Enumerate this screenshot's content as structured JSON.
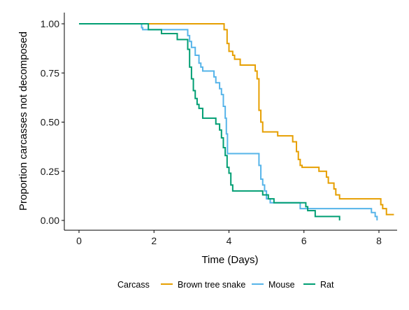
{
  "chart_data": {
    "type": "line",
    "step": true,
    "title": "",
    "xlabel": "Time (Days)",
    "ylabel": "Proportion carcasses not decomposed",
    "xlim": [
      0,
      8.4
    ],
    "ylim": [
      0,
      1
    ],
    "xticks": [
      0,
      2,
      4,
      6,
      8
    ],
    "xtick_labels": [
      "0",
      "2",
      "4",
      "6",
      "8"
    ],
    "yticks": [
      0,
      0.25,
      0.5,
      0.75,
      1
    ],
    "ytick_labels": [
      "0.00",
      "0.25",
      "0.50",
      "0.75",
      "1.00"
    ],
    "grid": false,
    "legend": {
      "title": "Carcass",
      "position": "bottom"
    },
    "series": [
      {
        "name": "Brown tree snake",
        "color": "#E69F00",
        "points": [
          [
            0,
            1.0
          ],
          [
            3.87,
            1.0
          ],
          [
            3.87,
            0.97
          ],
          [
            3.95,
            0.97
          ],
          [
            3.95,
            0.9
          ],
          [
            4.0,
            0.9
          ],
          [
            4.0,
            0.86
          ],
          [
            4.1,
            0.86
          ],
          [
            4.1,
            0.84
          ],
          [
            4.15,
            0.84
          ],
          [
            4.15,
            0.82
          ],
          [
            4.3,
            0.82
          ],
          [
            4.3,
            0.79
          ],
          [
            4.7,
            0.79
          ],
          [
            4.7,
            0.76
          ],
          [
            4.75,
            0.76
          ],
          [
            4.75,
            0.72
          ],
          [
            4.8,
            0.72
          ],
          [
            4.8,
            0.56
          ],
          [
            4.85,
            0.56
          ],
          [
            4.85,
            0.5
          ],
          [
            4.9,
            0.5
          ],
          [
            4.9,
            0.45
          ],
          [
            5.3,
            0.45
          ],
          [
            5.3,
            0.43
          ],
          [
            5.7,
            0.43
          ],
          [
            5.7,
            0.4
          ],
          [
            5.8,
            0.4
          ],
          [
            5.8,
            0.35
          ],
          [
            5.85,
            0.35
          ],
          [
            5.85,
            0.31
          ],
          [
            5.9,
            0.31
          ],
          [
            5.9,
            0.28
          ],
          [
            5.95,
            0.28
          ],
          [
            5.95,
            0.27
          ],
          [
            6.4,
            0.27
          ],
          [
            6.4,
            0.25
          ],
          [
            6.6,
            0.25
          ],
          [
            6.6,
            0.22
          ],
          [
            6.65,
            0.22
          ],
          [
            6.65,
            0.19
          ],
          [
            6.8,
            0.19
          ],
          [
            6.8,
            0.16
          ],
          [
            6.85,
            0.16
          ],
          [
            6.85,
            0.13
          ],
          [
            6.95,
            0.13
          ],
          [
            6.95,
            0.11
          ],
          [
            8.05,
            0.11
          ],
          [
            8.05,
            0.08
          ],
          [
            8.1,
            0.08
          ],
          [
            8.1,
            0.06
          ],
          [
            8.2,
            0.06
          ],
          [
            8.2,
            0.03
          ],
          [
            8.4,
            0.03
          ]
        ]
      },
      {
        "name": "Mouse",
        "color": "#56B4E9",
        "points": [
          [
            0,
            1.0
          ],
          [
            1.67,
            1.0
          ],
          [
            1.67,
            0.98
          ],
          [
            1.7,
            0.98
          ],
          [
            1.7,
            0.97
          ],
          [
            2.9,
            0.97
          ],
          [
            2.9,
            0.94
          ],
          [
            2.95,
            0.94
          ],
          [
            2.95,
            0.91
          ],
          [
            3.0,
            0.91
          ],
          [
            3.0,
            0.88
          ],
          [
            3.1,
            0.88
          ],
          [
            3.1,
            0.84
          ],
          [
            3.2,
            0.84
          ],
          [
            3.2,
            0.8
          ],
          [
            3.25,
            0.8
          ],
          [
            3.25,
            0.78
          ],
          [
            3.3,
            0.78
          ],
          [
            3.3,
            0.76
          ],
          [
            3.6,
            0.76
          ],
          [
            3.6,
            0.73
          ],
          [
            3.65,
            0.73
          ],
          [
            3.65,
            0.7
          ],
          [
            3.75,
            0.7
          ],
          [
            3.75,
            0.67
          ],
          [
            3.8,
            0.67
          ],
          [
            3.8,
            0.64
          ],
          [
            3.85,
            0.64
          ],
          [
            3.85,
            0.58
          ],
          [
            3.9,
            0.58
          ],
          [
            3.9,
            0.52
          ],
          [
            3.93,
            0.52
          ],
          [
            3.93,
            0.44
          ],
          [
            3.96,
            0.44
          ],
          [
            3.96,
            0.34
          ],
          [
            4.8,
            0.34
          ],
          [
            4.8,
            0.28
          ],
          [
            4.85,
            0.28
          ],
          [
            4.85,
            0.21
          ],
          [
            4.9,
            0.21
          ],
          [
            4.9,
            0.18
          ],
          [
            4.95,
            0.18
          ],
          [
            4.95,
            0.15
          ],
          [
            5.0,
            0.15
          ],
          [
            5.0,
            0.11
          ],
          [
            5.1,
            0.11
          ],
          [
            5.1,
            0.09
          ],
          [
            5.9,
            0.09
          ],
          [
            5.9,
            0.06
          ],
          [
            7.8,
            0.06
          ],
          [
            7.8,
            0.04
          ],
          [
            7.9,
            0.04
          ],
          [
            7.9,
            0.02
          ],
          [
            7.95,
            0.02
          ],
          [
            7.95,
            0.0
          ]
        ]
      },
      {
        "name": "Rat",
        "color": "#009E73",
        "points": [
          [
            0,
            1.0
          ],
          [
            1.85,
            1.0
          ],
          [
            1.85,
            0.97
          ],
          [
            2.2,
            0.97
          ],
          [
            2.2,
            0.95
          ],
          [
            2.62,
            0.95
          ],
          [
            2.62,
            0.92
          ],
          [
            2.9,
            0.92
          ],
          [
            2.9,
            0.87
          ],
          [
            2.95,
            0.87
          ],
          [
            2.95,
            0.78
          ],
          [
            3.0,
            0.78
          ],
          [
            3.0,
            0.72
          ],
          [
            3.05,
            0.72
          ],
          [
            3.05,
            0.66
          ],
          [
            3.1,
            0.66
          ],
          [
            3.1,
            0.62
          ],
          [
            3.15,
            0.62
          ],
          [
            3.15,
            0.59
          ],
          [
            3.2,
            0.59
          ],
          [
            3.2,
            0.57
          ],
          [
            3.3,
            0.57
          ],
          [
            3.3,
            0.52
          ],
          [
            3.65,
            0.52
          ],
          [
            3.65,
            0.49
          ],
          [
            3.75,
            0.49
          ],
          [
            3.75,
            0.46
          ],
          [
            3.8,
            0.46
          ],
          [
            3.8,
            0.42
          ],
          [
            3.85,
            0.42
          ],
          [
            3.85,
            0.37
          ],
          [
            3.9,
            0.37
          ],
          [
            3.9,
            0.33
          ],
          [
            3.95,
            0.33
          ],
          [
            3.95,
            0.27
          ],
          [
            4.0,
            0.27
          ],
          [
            4.0,
            0.24
          ],
          [
            4.05,
            0.24
          ],
          [
            4.05,
            0.18
          ],
          [
            4.1,
            0.18
          ],
          [
            4.1,
            0.15
          ],
          [
            4.9,
            0.15
          ],
          [
            4.9,
            0.13
          ],
          [
            5.05,
            0.13
          ],
          [
            5.05,
            0.11
          ],
          [
            5.2,
            0.11
          ],
          [
            5.2,
            0.09
          ],
          [
            6.05,
            0.09
          ],
          [
            6.05,
            0.07
          ],
          [
            6.1,
            0.07
          ],
          [
            6.1,
            0.05
          ],
          [
            6.3,
            0.05
          ],
          [
            6.3,
            0.02
          ],
          [
            6.95,
            0.02
          ],
          [
            6.95,
            0.0
          ]
        ]
      }
    ]
  }
}
